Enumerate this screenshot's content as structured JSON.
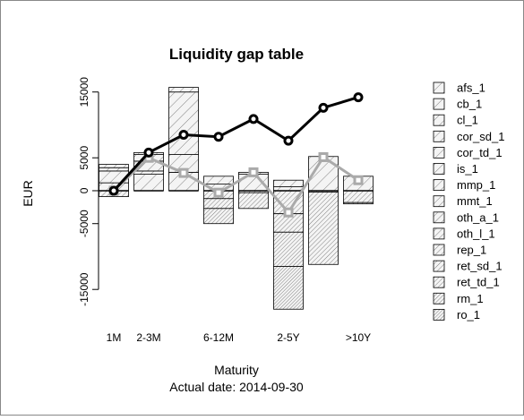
{
  "chart_data": {
    "type": "bar",
    "title": "Liquidity gap table",
    "ylabel": "EUR",
    "xlabel": "Maturity",
    "subtitle": "Actual date:  2014-09-30",
    "categories": [
      "1M",
      "2-3M",
      null,
      "6-12M",
      null,
      "2-5Y",
      null,
      ">10Y"
    ],
    "ylim": [
      -18700,
      16800
    ],
    "yticks": [
      -15000,
      -5000,
      0,
      5000,
      15000
    ],
    "series": [
      {
        "name": "afs_1",
        "values": [
          1200,
          2500,
          2800,
          1000,
          2500,
          600,
          5200,
          2200
        ]
      },
      {
        "name": "cb_1",
        "values": [
          1800,
          500,
          2700,
          1200,
          300,
          1000,
          0,
          0
        ]
      },
      {
        "name": "cl_1",
        "values": [
          500,
          1500,
          9500,
          0,
          0,
          0,
          0,
          0
        ]
      },
      {
        "name": "cor_sd_1",
        "values": [
          500,
          1000,
          700,
          0,
          0,
          0,
          0,
          0
        ]
      },
      {
        "name": "cor_td_1",
        "values": [
          0,
          300,
          0,
          0,
          0,
          0,
          0,
          0
        ]
      },
      {
        "name": "is_1",
        "values": [
          0,
          0,
          0,
          0,
          0,
          0,
          0,
          0
        ]
      },
      {
        "name": "mmp_1",
        "values": [
          0,
          0,
          0,
          0,
          0,
          0,
          0,
          0
        ]
      },
      {
        "name": "mmt_1",
        "values": [
          0,
          0,
          0,
          0,
          0,
          0,
          0,
          0
        ]
      },
      {
        "name": "oth_a_1",
        "values": [
          0,
          0,
          0,
          0,
          0,
          0,
          0,
          0
        ]
      },
      {
        "name": "oth_l_1",
        "values": [
          0,
          0,
          0,
          0,
          0,
          0,
          0,
          0
        ]
      },
      {
        "name": "rep_1",
        "values": [
          0,
          0,
          0,
          0,
          0,
          0,
          0,
          0
        ]
      },
      {
        "name": "ret_sd_1",
        "values": [
          -900,
          0,
          0,
          -1200,
          -300,
          -3500,
          -200,
          -1800
        ]
      },
      {
        "name": "ret_td_1",
        "values": [
          0,
          0,
          0,
          -1500,
          -2400,
          -2800,
          -11000,
          -200
        ]
      },
      {
        "name": "rm_1",
        "values": [
          0,
          0,
          0,
          -2300,
          0,
          -5200,
          0,
          0
        ]
      },
      {
        "name": "ro_1",
        "values": [
          0,
          0,
          0,
          0,
          0,
          -6500,
          0,
          0
        ]
      }
    ],
    "lines": [
      {
        "color": "#aaaaaa",
        "values": [
          0,
          5000,
          2700,
          -300,
          2800,
          -3300,
          5100,
          1600
        ]
      },
      {
        "color": "#000000",
        "values": [
          0,
          5800,
          8500,
          8200,
          10900,
          7600,
          12600,
          14200
        ]
      }
    ]
  }
}
